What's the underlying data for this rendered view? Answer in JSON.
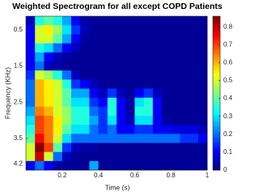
{
  "chart_data": {
    "type": "heatmap",
    "title": "Weighted Spectrogram for all except COPD Patients",
    "xlabel": "Time (s)",
    "ylabel": "Frequency (KHz)",
    "x": [
      0.025,
      0.075,
      0.125,
      0.175,
      0.225,
      0.275,
      0.325,
      0.375,
      0.425,
      0.475,
      0.525,
      0.575,
      0.625,
      0.675,
      0.725,
      0.775,
      0.825,
      0.875,
      0.925,
      0.975
    ],
    "y": [
      0.25,
      0.5,
      0.75,
      1.0,
      1.25,
      1.5,
      1.75,
      2.0,
      2.25,
      2.5,
      2.75,
      3.0,
      3.25,
      3.5,
      3.75,
      4.0,
      4.25
    ],
    "z": [
      [
        0.05,
        0.35,
        0.4,
        0.35,
        0.25,
        0.1,
        0.03,
        0.02,
        0.02,
        0.02,
        0.02,
        0.02,
        0.02,
        0.02,
        0.02,
        0.02,
        0.02,
        0.02,
        0.02,
        0.02
      ],
      [
        0.1,
        0.5,
        0.55,
        0.45,
        0.3,
        0.15,
        0.05,
        0.02,
        0.02,
        0.02,
        0.02,
        0.02,
        0.02,
        0.02,
        0.02,
        0.02,
        0.02,
        0.02,
        0.02,
        0.02
      ],
      [
        0.1,
        0.5,
        0.5,
        0.4,
        0.25,
        0.1,
        0.03,
        0.02,
        0.02,
        0.02,
        0.02,
        0.02,
        0.02,
        0.02,
        0.02,
        0.02,
        0.02,
        0.02,
        0.02,
        0.02
      ],
      [
        0.1,
        0.35,
        0.3,
        0.2,
        0.1,
        0.05,
        0.02,
        0.02,
        0.02,
        0.02,
        0.02,
        0.02,
        0.02,
        0.02,
        0.02,
        0.02,
        0.02,
        0.02,
        0.02,
        0.02
      ],
      [
        0.1,
        0.25,
        0.1,
        0.05,
        0.03,
        0.02,
        0.02,
        0.02,
        0.02,
        0.02,
        0.02,
        0.02,
        0.02,
        0.02,
        0.02,
        0.02,
        0.02,
        0.02,
        0.02,
        0.02
      ],
      [
        0.1,
        0.2,
        0.05,
        0.03,
        0.02,
        0.02,
        0.02,
        0.02,
        0.02,
        0.02,
        0.02,
        0.02,
        0.02,
        0.02,
        0.02,
        0.02,
        0.02,
        0.02,
        0.02,
        0.02
      ],
      [
        0.15,
        0.5,
        0.45,
        0.35,
        0.2,
        0.05,
        0.02,
        0.02,
        0.02,
        0.02,
        0.02,
        0.02,
        0.02,
        0.02,
        0.02,
        0.02,
        0.02,
        0.02,
        0.02,
        0.02
      ],
      [
        0.2,
        0.6,
        0.55,
        0.5,
        0.35,
        0.15,
        0.1,
        0.05,
        0.02,
        0.02,
        0.02,
        0.02,
        0.02,
        0.02,
        0.02,
        0.02,
        0.02,
        0.02,
        0.02,
        0.02
      ],
      [
        0.2,
        0.6,
        0.55,
        0.5,
        0.4,
        0.25,
        0.25,
        0.1,
        0.05,
        0.15,
        0.05,
        0.02,
        0.1,
        0.15,
        0.05,
        0.02,
        0.02,
        0.02,
        0.02,
        0.02
      ],
      [
        0.2,
        0.6,
        0.55,
        0.5,
        0.4,
        0.3,
        0.3,
        0.15,
        0.1,
        0.35,
        0.1,
        0.03,
        0.3,
        0.35,
        0.1,
        0.02,
        0.02,
        0.02,
        0.02,
        0.02
      ],
      [
        0.25,
        0.65,
        0.6,
        0.5,
        0.45,
        0.35,
        0.35,
        0.2,
        0.15,
        0.35,
        0.1,
        0.03,
        0.35,
        0.35,
        0.1,
        0.02,
        0.02,
        0.02,
        0.02,
        0.02
      ],
      [
        0.3,
        0.7,
        0.65,
        0.55,
        0.45,
        0.35,
        0.35,
        0.25,
        0.15,
        0.3,
        0.1,
        0.05,
        0.3,
        0.3,
        0.1,
        0.03,
        0.02,
        0.02,
        0.02,
        0.02
      ],
      [
        0.35,
        0.7,
        0.65,
        0.55,
        0.4,
        0.3,
        0.3,
        0.2,
        0.15,
        0.2,
        0.1,
        0.1,
        0.15,
        0.15,
        0.1,
        0.1,
        0.08,
        0.08,
        0.08,
        0.05
      ],
      [
        0.4,
        0.75,
        0.65,
        0.5,
        0.3,
        0.2,
        0.2,
        0.2,
        0.2,
        0.2,
        0.2,
        0.2,
        0.2,
        0.2,
        0.2,
        0.2,
        0.2,
        0.15,
        0.15,
        0.1
      ],
      [
        0.5,
        0.85,
        0.7,
        0.4,
        0.15,
        0.05,
        0.03,
        0.03,
        0.02,
        0.02,
        0.02,
        0.02,
        0.02,
        0.02,
        0.02,
        0.02,
        0.02,
        0.02,
        0.02,
        0.02
      ],
      [
        0.5,
        0.8,
        0.5,
        0.2,
        0.05,
        0.02,
        0.02,
        0.02,
        0.02,
        0.02,
        0.02,
        0.02,
        0.02,
        0.02,
        0.02,
        0.02,
        0.02,
        0.02,
        0.02,
        0.02
      ],
      [
        0.1,
        0.2,
        0.1,
        0.03,
        0.02,
        0.02,
        0.02,
        0.25,
        0.02,
        0.02,
        0.02,
        0.02,
        0.02,
        0.02,
        0.02,
        0.02,
        0.02,
        0.02,
        0.02,
        0.02
      ]
    ],
    "xlim": [
      0,
      1
    ],
    "xticks": [
      0.2,
      0.4,
      0.6,
      0.8,
      1
    ],
    "ylim": [
      0.125,
      4.375
    ],
    "yticks": [
      0.5,
      1.5,
      2.5,
      3.5,
      4.2
    ],
    "y_reversed": true,
    "colormap": "jet",
    "clim": [
      0,
      0.86
    ],
    "cticks": [
      0,
      0.1,
      0.2,
      0.3,
      0.4,
      0.5,
      0.6,
      0.7,
      0.8
    ]
  }
}
